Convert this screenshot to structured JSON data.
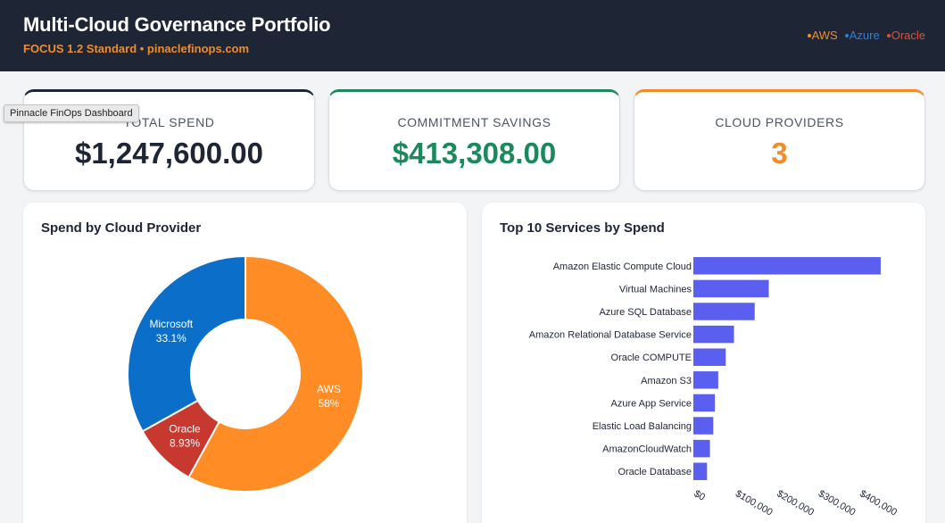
{
  "header": {
    "title": "Multi-Cloud Governance Portfolio",
    "subtitle": "FOCUS 1.2 Standard • pinaclefinops.com",
    "legend": [
      {
        "label": "AWS",
        "color": "#f28c28"
      },
      {
        "label": "Azure",
        "color": "#2f7fd6"
      },
      {
        "label": "Oracle",
        "color": "#d9513c"
      }
    ]
  },
  "tooltip": "Pinnacle FinOps Dashboard",
  "kpis": [
    {
      "label": "TOTAL SPEND",
      "value": "$1,247,600.00"
    },
    {
      "label": "COMMITMENT SAVINGS",
      "value": "$413,308.00"
    },
    {
      "label": "CLOUD PROVIDERS",
      "value": "3"
    }
  ],
  "panels": {
    "provider_title": "Spend by Cloud Provider",
    "services_title": "Top 10 Services by Spend"
  },
  "chart_data": [
    {
      "type": "pie",
      "title": "Spend by Cloud Provider",
      "slices": [
        {
          "label": "AWS",
          "value": 58,
          "value_label": "58%",
          "color": "#ff8c24"
        },
        {
          "label": "Oracle",
          "value": 8.93,
          "value_label": "8.93%",
          "color": "#c7392e"
        },
        {
          "label": "Microsoft",
          "value": 33.1,
          "value_label": "33.1%",
          "color": "#0b6fc9"
        }
      ]
    },
    {
      "type": "bar",
      "orientation": "horizontal",
      "title": "Top 10 Services by Spend",
      "color": "#5b5ff0",
      "categories": [
        "Amazon Elastic Compute Cloud",
        "Virtual Machines",
        "Azure SQL Database",
        "Amazon Relational Database Service",
        "Oracle COMPUTE",
        "Amazon S3",
        "Azure App Service",
        "Elastic Load Balancing",
        "AmazonCloudWatch",
        "Oracle Database"
      ],
      "values": [
        452000,
        182000,
        148000,
        98000,
        78000,
        60000,
        52000,
        48000,
        40000,
        33000
      ],
      "xlim": [
        0,
        450000
      ],
      "xticks": [
        0,
        100000,
        200000,
        300000,
        400000
      ],
      "xtick_labels": [
        "$0",
        "$100,000",
        "$200,000",
        "$300,000",
        "$400,000"
      ]
    }
  ]
}
